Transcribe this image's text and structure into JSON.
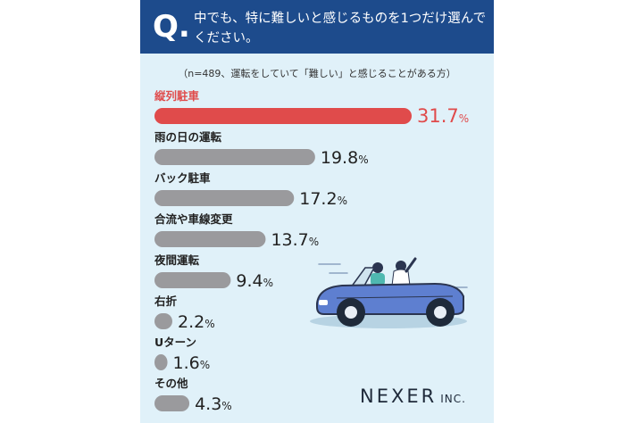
{
  "question": {
    "mark": "Q.",
    "text": "中でも、特に難しいと感じるものを1つだけ選んでください。"
  },
  "note": "（n=489、運転をしていて「難しい」と感じることがある方）",
  "brand": {
    "name": "NEXER",
    "suffix": "INC."
  },
  "colors": {
    "header": "#1d4b8c",
    "highlight": "#e04b4b",
    "bar": "#9a9a9d",
    "background": "#e0f1f9"
  },
  "chart_data": {
    "type": "bar",
    "orientation": "horizontal",
    "unit": "%",
    "categories": [
      "縦列駐車",
      "雨の日の運転",
      "バック駐車",
      "合流や車線変更",
      "夜間運転",
      "右折",
      "Uターン",
      "その他"
    ],
    "values": [
      31.7,
      19.8,
      17.2,
      13.7,
      9.4,
      2.2,
      1.6,
      4.3
    ],
    "value_labels": [
      "31.7",
      "19.8",
      "17.2",
      "13.7",
      "9.4",
      "2.2",
      "1.6",
      "4.3"
    ],
    "highlight_index": 0
  }
}
